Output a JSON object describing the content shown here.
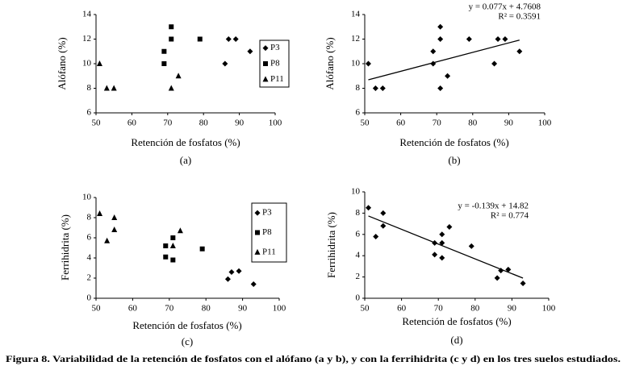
{
  "chart_data": [
    {
      "type": "scatter",
      "label": "(a)",
      "x_label": "Retención de fosfatos (%)",
      "y_label": "Alófano (%)",
      "xlim": [
        50,
        100
      ],
      "xticks": [
        50,
        60,
        70,
        80,
        90,
        100
      ],
      "ylim": [
        6,
        14
      ],
      "yticks": [
        6,
        8,
        10,
        12,
        14
      ],
      "series": [
        {
          "name": "P3",
          "color": "#000000",
          "marker": "diamond",
          "x": [
            86,
            87,
            89,
            93
          ],
          "values": [
            10,
            12,
            12,
            11
          ]
        },
        {
          "name": "P8",
          "color": "#000000",
          "marker": "square",
          "x": [
            69,
            69,
            71,
            71,
            79
          ],
          "values": [
            11,
            10,
            13,
            12,
            12
          ]
        },
        {
          "name": "P11",
          "color": "#000000",
          "marker": "triangle",
          "x": [
            51,
            53,
            55,
            71,
            73
          ],
          "values": [
            10,
            8,
            8,
            8,
            9
          ]
        }
      ]
    },
    {
      "type": "scatter",
      "label": "(b)",
      "x_label": "Retención de fosfatos (%)",
      "y_label": "Alófano (%)",
      "xlim": [
        50,
        100
      ],
      "xticks": [
        50,
        60,
        70,
        80,
        90,
        100
      ],
      "ylim": [
        6,
        14
      ],
      "yticks": [
        6,
        8,
        10,
        12,
        14
      ],
      "series": [
        {
          "color": "#000000",
          "marker": "diamond",
          "x": [
            51,
            53,
            55,
            69,
            69,
            71,
            71,
            71,
            73,
            79,
            86,
            87,
            89,
            93
          ],
          "values": [
            10,
            8,
            8,
            11,
            10,
            13,
            12,
            8,
            9,
            12,
            10,
            12,
            12,
            11
          ]
        }
      ],
      "trendline": {
        "slope": 0.077,
        "intercept": 4.7608,
        "equation": "y = 0.077x + 4.7608",
        "r2": "R² = 0.3591"
      }
    },
    {
      "type": "scatter",
      "label": "(c)",
      "x_label": "Retención de fosfatos (%)",
      "y_label": "Ferrihidrita (%)",
      "xlim": [
        50,
        100
      ],
      "xticks": [
        50,
        60,
        70,
        80,
        90,
        100
      ],
      "ylim": [
        0,
        10
      ],
      "yticks": [
        0,
        2,
        4,
        6,
        8,
        10
      ],
      "series": [
        {
          "name": "P3",
          "color": "#000000",
          "marker": "diamond",
          "x": [
            86,
            87,
            89,
            93
          ],
          "values": [
            1.9,
            2.6,
            2.7,
            1.4
          ]
        },
        {
          "name": "P8",
          "color": "#000000",
          "marker": "square",
          "x": [
            69,
            69,
            71,
            71,
            79
          ],
          "values": [
            5.2,
            4.1,
            6,
            3.8,
            4.9
          ]
        },
        {
          "name": "P11",
          "color": "#000000",
          "marker": "triangle",
          "x": [
            51,
            53,
            55,
            55,
            71,
            73
          ],
          "values": [
            8.4,
            5.7,
            8,
            6.8,
            5.2,
            6.7
          ]
        }
      ]
    },
    {
      "type": "scatter",
      "label": "(d)",
      "x_label": "Retención de fosfatos (%)",
      "y_label": "Ferrihidrita (%)",
      "xlim": [
        50,
        100
      ],
      "xticks": [
        50,
        60,
        70,
        80,
        90,
        100
      ],
      "ylim": [
        0,
        10
      ],
      "yticks": [
        0,
        2,
        4,
        6,
        8,
        10
      ],
      "series": [
        {
          "color": "#000000",
          "marker": "diamond",
          "x": [
            51,
            53,
            55,
            55,
            69,
            69,
            71,
            71,
            71,
            73,
            79,
            86,
            87,
            89,
            93
          ],
          "values": [
            8.5,
            5.8,
            8,
            6.8,
            5.2,
            4.1,
            6,
            5.2,
            3.8,
            6.7,
            4.9,
            1.9,
            2.6,
            2.7,
            1.4
          ]
        }
      ],
      "trendline": {
        "slope": -0.139,
        "intercept": 14.82,
        "equation": "y = -0.139x + 14.82",
        "r2": "R² = 0.774"
      }
    }
  ],
  "caption": "Figura 8. Variabilidad de la retención de fosfatos con el alófano (a y b), y con la ferrihidrita (c y d) en los tres suelos estudiados."
}
